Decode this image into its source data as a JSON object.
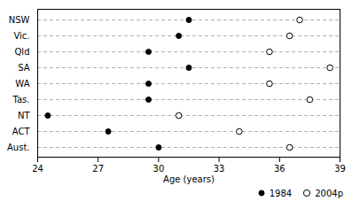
{
  "chart_data": {
    "type": "dot",
    "orientation": "horizontal",
    "xlabel": "Age (years)",
    "categories": [
      "NSW",
      "Vic.",
      "Qld",
      "SA",
      "WA",
      "Tas.",
      "NT",
      "ACT",
      "Aust."
    ],
    "series": [
      {
        "name": "1984",
        "color": "black",
        "values": [
          31.5,
          31.0,
          29.5,
          31.5,
          29.5,
          29.5,
          24.5,
          27.5,
          30.0
        ]
      },
      {
        "name": "2004p",
        "color": "white",
        "values": [
          37.0,
          36.5,
          35.5,
          38.5,
          35.5,
          37.5,
          31.0,
          34.0,
          36.5
        ]
      }
    ],
    "xlim": [
      24,
      39
    ],
    "xticks": [
      24,
      27,
      30,
      33,
      36,
      39
    ],
    "grid": true,
    "legend": "lower right"
  }
}
